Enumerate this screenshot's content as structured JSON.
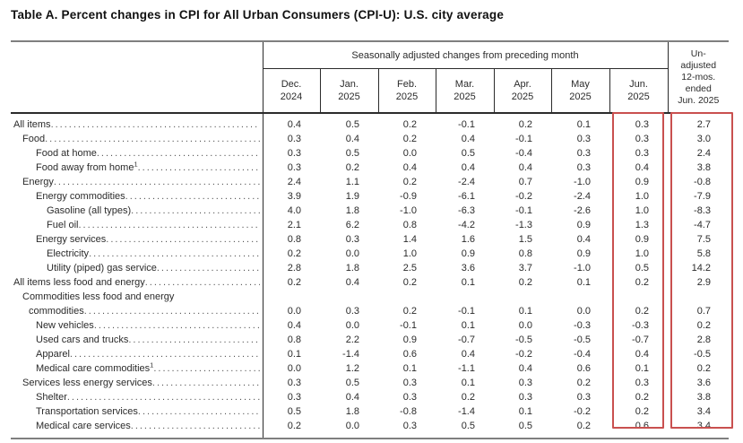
{
  "chart_data": {
    "type": "table",
    "title": "Table A. Percent changes in CPI for All Urban Consumers (CPI-U): U.S. city average",
    "column_group": "Seasonally adjusted changes from preceding month",
    "columns": [
      "Dec.\n2024",
      "Jan.\n2025",
      "Feb.\n2025",
      "Mar.\n2025",
      "Apr.\n2025",
      "May\n2025",
      "Jun.\n2025"
    ],
    "unadjusted_column": "Un-\nadjusted\n12-mos.\nended\nJun. 2025",
    "highlighted_columns": [
      "Jun. 2025",
      "Un-adjusted 12-mos. ended Jun. 2025"
    ],
    "highlight_color": "#c9504f",
    "rows": [
      {
        "label": "All items",
        "indent": 0,
        "values": [
          "0.4",
          "0.5",
          "0.2",
          "-0.1",
          "0.2",
          "0.1",
          "0.3",
          "2.7"
        ]
      },
      {
        "label": "Food",
        "indent": 1,
        "values": [
          "0.3",
          "0.4",
          "0.2",
          "0.4",
          "-0.1",
          "0.3",
          "0.3",
          "3.0"
        ]
      },
      {
        "label": "Food at home",
        "indent": 2,
        "values": [
          "0.3",
          "0.5",
          "0.0",
          "0.5",
          "-0.4",
          "0.3",
          "0.3",
          "2.4"
        ]
      },
      {
        "label": "Food away from home",
        "footnote": "1",
        "indent": 2,
        "values": [
          "0.3",
          "0.2",
          "0.4",
          "0.4",
          "0.4",
          "0.3",
          "0.4",
          "3.8"
        ]
      },
      {
        "label": "Energy",
        "indent": 1,
        "values": [
          "2.4",
          "1.1",
          "0.2",
          "-2.4",
          "0.7",
          "-1.0",
          "0.9",
          "-0.8"
        ]
      },
      {
        "label": "Energy commodities",
        "indent": 2,
        "values": [
          "3.9",
          "1.9",
          "-0.9",
          "-6.1",
          "-0.2",
          "-2.4",
          "1.0",
          "-7.9"
        ]
      },
      {
        "label": "Gasoline (all types)",
        "indent": 3,
        "values": [
          "4.0",
          "1.8",
          "-1.0",
          "-6.3",
          "-0.1",
          "-2.6",
          "1.0",
          "-8.3"
        ]
      },
      {
        "label": "Fuel oil",
        "indent": 3,
        "values": [
          "2.1",
          "6.2",
          "0.8",
          "-4.2",
          "-1.3",
          "0.9",
          "1.3",
          "-4.7"
        ]
      },
      {
        "label": "Energy services",
        "indent": 2,
        "values": [
          "0.8",
          "0.3",
          "1.4",
          "1.6",
          "1.5",
          "0.4",
          "0.9",
          "7.5"
        ]
      },
      {
        "label": "Electricity",
        "indent": 3,
        "values": [
          "0.2",
          "0.0",
          "1.0",
          "0.9",
          "0.8",
          "0.9",
          "1.0",
          "5.8"
        ]
      },
      {
        "label": "Utility (piped) gas service",
        "indent": 3,
        "values": [
          "2.8",
          "1.8",
          "2.5",
          "3.6",
          "3.7",
          "-1.0",
          "0.5",
          "14.2"
        ]
      },
      {
        "label": "All items less food and energy",
        "indent": 0,
        "values": [
          "0.2",
          "0.4",
          "0.2",
          "0.1",
          "0.2",
          "0.1",
          "0.2",
          "2.9"
        ]
      },
      {
        "label_line1": "Commodities less food and energy",
        "label": "commodities",
        "indent": 1,
        "values": [
          "0.0",
          "0.3",
          "0.2",
          "-0.1",
          "0.1",
          "0.0",
          "0.2",
          "0.7"
        ]
      },
      {
        "label": "New vehicles",
        "indent": 2,
        "values": [
          "0.4",
          "0.0",
          "-0.1",
          "0.1",
          "0.0",
          "-0.3",
          "-0.3",
          "0.2"
        ]
      },
      {
        "label": "Used cars and trucks",
        "indent": 2,
        "values": [
          "0.8",
          "2.2",
          "0.9",
          "-0.7",
          "-0.5",
          "-0.5",
          "-0.7",
          "2.8"
        ]
      },
      {
        "label": "Apparel",
        "indent": 2,
        "values": [
          "0.1",
          "-1.4",
          "0.6",
          "0.4",
          "-0.2",
          "-0.4",
          "0.4",
          "-0.5"
        ]
      },
      {
        "label": "Medical care commodities",
        "footnote": "1",
        "indent": 2,
        "values": [
          "0.0",
          "1.2",
          "0.1",
          "-1.1",
          "0.4",
          "0.6",
          "0.1",
          "0.2"
        ]
      },
      {
        "label": "Services less energy services",
        "indent": 1,
        "values": [
          "0.3",
          "0.5",
          "0.3",
          "0.1",
          "0.3",
          "0.2",
          "0.3",
          "3.6"
        ]
      },
      {
        "label": "Shelter",
        "indent": 2,
        "values": [
          "0.3",
          "0.4",
          "0.3",
          "0.2",
          "0.3",
          "0.3",
          "0.2",
          "3.8"
        ]
      },
      {
        "label": "Transportation services",
        "indent": 2,
        "values": [
          "0.5",
          "1.8",
          "-0.8",
          "-1.4",
          "0.1",
          "-0.2",
          "0.2",
          "3.4"
        ]
      },
      {
        "label": "Medical care services",
        "indent": 2,
        "values": [
          "0.2",
          "0.0",
          "0.3",
          "0.5",
          "0.5",
          "0.2",
          "0.6",
          "3.4"
        ]
      }
    ]
  }
}
